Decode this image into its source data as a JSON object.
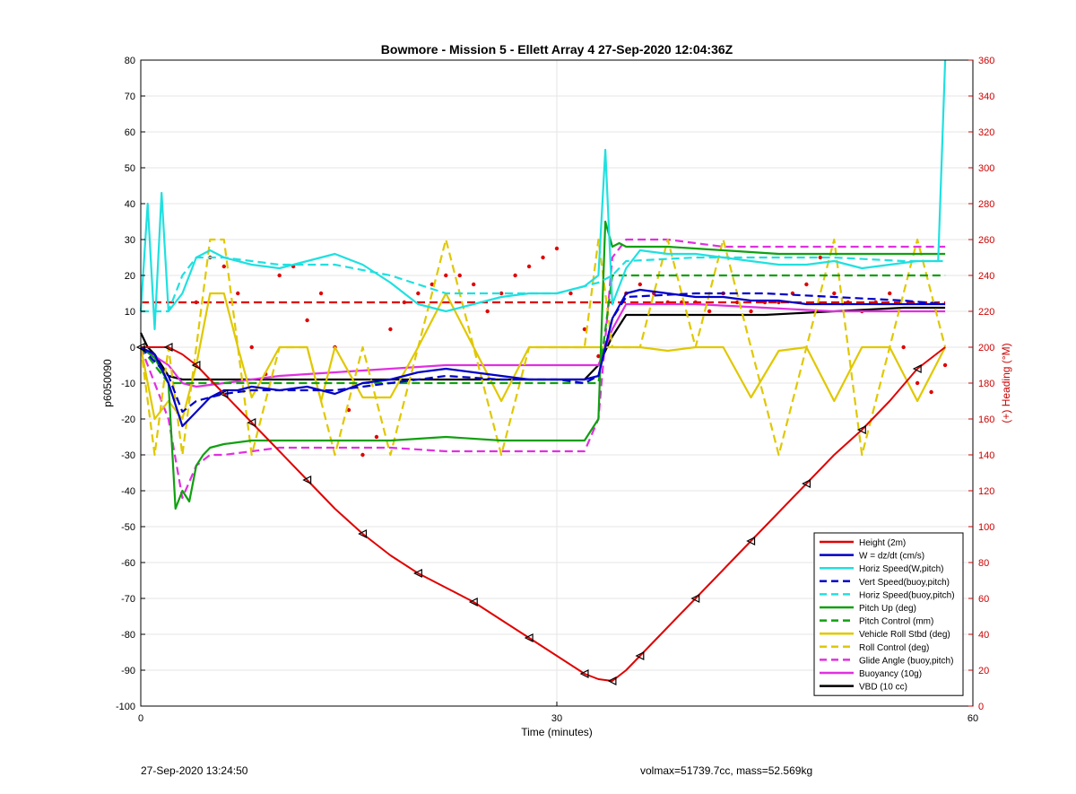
{
  "footer": {
    "timestamp": "27-Sep-2020 13:24:50",
    "vehicle_info": "volmax=51739.7cc, mass=52.569kg"
  },
  "colors": {
    "left_axis": "#000000",
    "right_axis": "#cc0000",
    "grid": "#e6e6e6"
  },
  "chart_data": {
    "type": "line",
    "title": "Bowmore - Mission 5 - Ellett Array 4 27-Sep-2020 12:04:36Z",
    "xlabel": "Time (minutes)",
    "ylabel": "p6050090",
    "y2label": "(+) Heading (°M)",
    "xlim": [
      0,
      60
    ],
    "ylim": [
      -100,
      80
    ],
    "y2lim": [
      0,
      360
    ],
    "xticks": [
      0,
      30,
      60
    ],
    "yticks": [
      -100,
      -90,
      -80,
      -70,
      -60,
      -50,
      -40,
      -30,
      -20,
      -10,
      0,
      10,
      20,
      30,
      40,
      50,
      60,
      70,
      80
    ],
    "y2ticks": [
      0,
      20,
      40,
      60,
      80,
      100,
      120,
      140,
      160,
      180,
      200,
      220,
      240,
      260,
      280,
      300,
      320,
      340,
      360
    ],
    "grid": true,
    "legend_position": "bottom-right",
    "series": [
      {
        "name": "Height (2m)",
        "color": "#e00000",
        "style": "solid",
        "markers": "triangle",
        "x": [
          0,
          1,
          2,
          3,
          4,
          5,
          6,
          7,
          8,
          10,
          12,
          14,
          16,
          18,
          20,
          22,
          24,
          26,
          28,
          30,
          32,
          33,
          34,
          35,
          36,
          38,
          40,
          42,
          44,
          46,
          48,
          50,
          52,
          54,
          56,
          58
        ],
        "values": [
          0,
          0,
          0,
          -2,
          -5,
          -9,
          -13,
          -17,
          -21,
          -29,
          -37,
          -45,
          -52,
          -58,
          -63,
          -67,
          -71,
          -76,
          -81,
          -86,
          -91,
          -92.5,
          -93,
          -90,
          -86,
          -78,
          -70,
          -62,
          -54,
          -46,
          -38,
          -30,
          -23,
          -15,
          -6,
          0
        ]
      },
      {
        "name": "W = dz/dt (cm/s)",
        "color": "#0000c8",
        "style": "solid",
        "x": [
          0,
          1,
          2,
          3,
          4,
          5,
          6,
          7,
          8,
          10,
          12,
          14,
          16,
          18,
          20,
          22,
          24,
          26,
          28,
          30,
          32,
          33,
          34,
          35,
          36,
          38,
          40,
          42,
          44,
          46,
          48,
          50,
          52,
          54,
          56,
          58
        ],
        "values": [
          0,
          -2,
          -10,
          -22,
          -18,
          -14,
          -12,
          -12,
          -11,
          -12,
          -11,
          -13,
          -10,
          -9,
          -7,
          -6,
          -7,
          -8,
          -9,
          -9,
          -9,
          -8,
          8,
          15,
          16,
          15,
          14,
          14,
          13,
          13,
          12,
          12,
          12,
          12,
          12,
          12
        ]
      },
      {
        "name": "Horiz Speed(W,pitch)",
        "color": "#20e0e0",
        "style": "solid",
        "x": [
          0,
          0.5,
          1,
          1.5,
          2,
          3,
          4,
          5,
          6,
          8,
          10,
          12,
          14,
          16,
          18,
          20,
          22,
          24,
          26,
          28,
          30,
          32,
          33,
          33.5,
          34,
          35,
          36,
          38,
          40,
          42,
          44,
          46,
          48,
          50,
          52,
          54,
          56,
          57.5,
          58
        ],
        "values": [
          10,
          40,
          5,
          43,
          10,
          15,
          25,
          27,
          25,
          23,
          22,
          24,
          26,
          23,
          18,
          12,
          10,
          12,
          14,
          15,
          15,
          17,
          20,
          55,
          12,
          22,
          27,
          26,
          26,
          25,
          24,
          23,
          23,
          24,
          22,
          23,
          24,
          24,
          80
        ]
      },
      {
        "name": "Vert Speed(buoy,pitch)",
        "color": "#0000c8",
        "style": "dashed",
        "x": [
          0,
          2,
          3,
          4,
          6,
          8,
          10,
          14,
          18,
          22,
          26,
          30,
          32,
          33,
          34,
          35,
          40,
          45,
          50,
          55,
          58
        ],
        "values": [
          0,
          -8,
          -18,
          -15,
          -13,
          -12,
          -12,
          -12,
          -10,
          -8,
          -9,
          -9,
          -10,
          -8,
          8,
          14,
          15,
          15,
          14,
          13,
          12
        ]
      },
      {
        "name": "Horiz Speed(buoy,pitch)",
        "color": "#20e0e0",
        "style": "dashed",
        "x": [
          0,
          2,
          3,
          4,
          6,
          8,
          10,
          14,
          18,
          22,
          26,
          30,
          32,
          33,
          34,
          35,
          40,
          45,
          50,
          55,
          58
        ],
        "values": [
          10,
          10,
          20,
          25,
          25,
          24,
          23,
          23,
          20,
          15,
          15,
          15,
          17,
          18,
          20,
          24,
          25,
          25,
          25,
          24,
          24
        ]
      },
      {
        "name": "Pitch Up (deg)",
        "color": "#10a010",
        "style": "solid",
        "x": [
          0,
          1,
          2,
          2.5,
          3,
          3.5,
          4,
          4.5,
          5,
          6,
          8,
          10,
          14,
          18,
          22,
          26,
          30,
          32,
          33,
          33.5,
          34,
          34.5,
          35,
          38,
          42,
          46,
          50,
          54,
          58
        ],
        "values": [
          0,
          -3,
          -10,
          -45,
          -40,
          -43,
          -33,
          -30,
          -28,
          -27,
          -26,
          -26,
          -26,
          -26,
          -25,
          -26,
          -26,
          -26,
          -20,
          35,
          28,
          29,
          28,
          28,
          27,
          26,
          26,
          26,
          26
        ]
      },
      {
        "name": "Pitch Control (mm)",
        "color": "#10a010",
        "style": "dashed",
        "x": [
          0,
          2,
          3,
          10,
          20,
          30,
          32,
          33,
          34,
          58
        ],
        "values": [
          0,
          -10,
          -10,
          -10,
          -10,
          -10,
          -10,
          -10,
          20,
          20
        ]
      },
      {
        "name": "Vehicle Roll Stbd (deg)",
        "color": "#e0c800",
        "style": "solid",
        "x": [
          0,
          1,
          2,
          3,
          4,
          5,
          6,
          7,
          8,
          10,
          12,
          13,
          14,
          16,
          18,
          20,
          22,
          24,
          26,
          28,
          30,
          32,
          33,
          34,
          36,
          38,
          40,
          42,
          44,
          46,
          48,
          50,
          52,
          54,
          56,
          58
        ],
        "values": [
          0,
          -20,
          -15,
          -20,
          -5,
          15,
          15,
          0,
          -14,
          0,
          0,
          -15,
          0,
          -14,
          -14,
          0,
          15,
          0,
          -15,
          0,
          0,
          0,
          0,
          0,
          0,
          -1,
          0,
          0,
          -14,
          -1,
          0,
          -15,
          0,
          0,
          -15,
          0
        ]
      },
      {
        "name": "Roll Control (deg)",
        "color": "#e0c800",
        "style": "dashed",
        "x": [
          0,
          1,
          2,
          3,
          4,
          5,
          6,
          7,
          8,
          10,
          12,
          14,
          16,
          18,
          20,
          22,
          24,
          26,
          28,
          30,
          32,
          33,
          34,
          36,
          38,
          40,
          42,
          44,
          46,
          48,
          50,
          52,
          54,
          56,
          58
        ],
        "values": [
          0,
          -30,
          0,
          -30,
          0,
          30,
          30,
          0,
          -30,
          0,
          0,
          -30,
          0,
          -30,
          0,
          30,
          0,
          -30,
          0,
          0,
          0,
          30,
          0,
          0,
          30,
          0,
          30,
          0,
          -30,
          0,
          30,
          -30,
          0,
          30,
          0
        ]
      },
      {
        "name": "Glide Angle (buoy,pitch)",
        "color": "#e030e0",
        "style": "dashed",
        "x": [
          0,
          2,
          3,
          4,
          5,
          6,
          8,
          10,
          14,
          18,
          22,
          26,
          30,
          32,
          33,
          34,
          35,
          38,
          42,
          46,
          50,
          54,
          58
        ],
        "values": [
          0,
          -20,
          -42,
          -33,
          -30,
          -30,
          -29,
          -28,
          -28,
          -28,
          -29,
          -29,
          -29,
          -29,
          -20,
          25,
          30,
          30,
          28,
          28,
          28,
          28,
          28
        ]
      },
      {
        "name": "Buoyancy (10g)",
        "color": "#e030e0",
        "style": "solid",
        "x": [
          0,
          2,
          3,
          4,
          6,
          8,
          10,
          14,
          18,
          22,
          26,
          30,
          32,
          33,
          34,
          35,
          40,
          45,
          50,
          55,
          58
        ],
        "values": [
          0,
          -5,
          -10,
          -11,
          -10,
          -9,
          -8,
          -7,
          -6,
          -5,
          -5,
          -5,
          -5,
          -5,
          5,
          12,
          12,
          11,
          10,
          10,
          10
        ]
      },
      {
        "name": "VBD (10 cc)",
        "color": "#000000",
        "style": "solid",
        "x": [
          0,
          0.5,
          1,
          2,
          3,
          10,
          20,
          30,
          32,
          33,
          34,
          35,
          40,
          45,
          50,
          55,
          58
        ],
        "values": [
          4,
          0,
          -2,
          -8,
          -9,
          -9,
          -9,
          -9,
          -9,
          -5,
          3,
          9,
          9,
          9,
          10,
          11,
          11
        ]
      },
      {
        "name": "",
        "axis": "right",
        "color": "#e00000",
        "style": "dashed",
        "x": [
          0,
          58
        ],
        "values": [
          225,
          225
        ]
      },
      {
        "name": "",
        "axis": "right",
        "color": "#e00000",
        "style": "dots",
        "x": [
          4,
          5,
          6,
          7,
          8,
          9,
          10,
          11,
          12,
          13,
          14,
          15,
          16,
          17,
          18,
          19,
          20,
          21,
          22,
          23,
          24,
          25,
          26,
          27,
          28,
          29,
          30,
          31,
          32,
          33,
          34,
          35,
          36,
          37,
          38,
          39,
          40,
          41,
          42,
          43,
          44,
          45,
          46,
          47,
          48,
          49,
          50,
          51,
          52,
          53,
          54,
          55,
          56,
          57,
          58
        ],
        "values": [
          225,
          250,
          245,
          230,
          200,
          185,
          240,
          245,
          215,
          230,
          200,
          165,
          140,
          150,
          210,
          225,
          230,
          235,
          240,
          240,
          235,
          220,
          230,
          240,
          245,
          250,
          255,
          230,
          210,
          195,
          225,
          230,
          235,
          230,
          225,
          225,
          225,
          220,
          230,
          225,
          220,
          225,
          225,
          230,
          235,
          250,
          230,
          225,
          220,
          225,
          230,
          200,
          180,
          175,
          190
        ]
      }
    ]
  }
}
